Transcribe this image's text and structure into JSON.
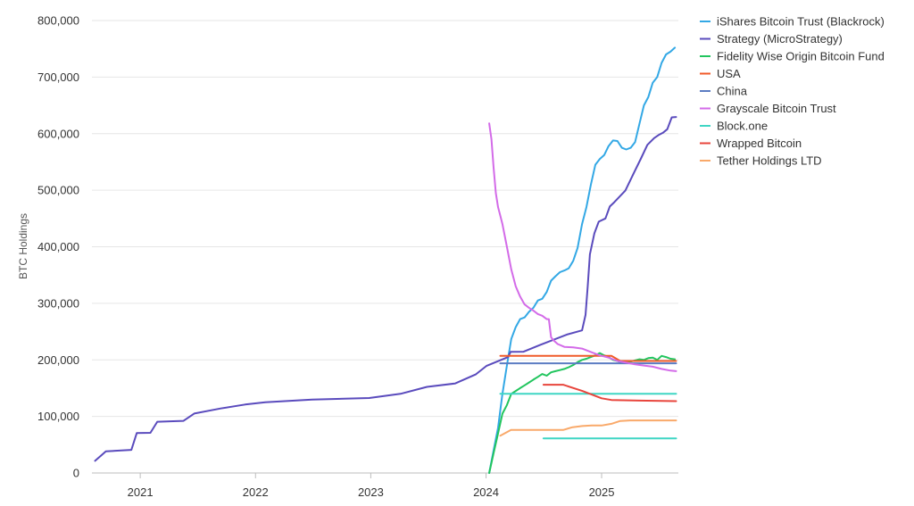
{
  "chart_data": {
    "type": "line",
    "title": "",
    "xlabel": "",
    "ylabel": "BTC Holdings",
    "xlim": [
      "2020-08-01",
      "2025-09-01"
    ],
    "ylim": [
      0,
      800000
    ],
    "y_ticks": [
      0,
      100000,
      200000,
      300000,
      400000,
      500000,
      600000,
      700000,
      800000
    ],
    "y_tick_labels": [
      "0",
      "100,000",
      "200,000",
      "300,000",
      "400,000",
      "500,000",
      "600,000",
      "700,000",
      "800,000"
    ],
    "x_ticks": [
      "2021-01-01",
      "2022-01-01",
      "2023-01-01",
      "2024-01-01",
      "2025-01-01"
    ],
    "x_tick_labels": [
      "2021",
      "2022",
      "2023",
      "2024",
      "2025"
    ],
    "grid": "horizontal",
    "legend_position": "right",
    "series": [
      {
        "name": "iShares Bitcoin Trust (Blackrock)",
        "color": "#33a8e5",
        "points": [
          [
            "2024-01-11",
            0
          ],
          [
            "2024-01-25",
            40000
          ],
          [
            "2024-02-08",
            80000
          ],
          [
            "2024-02-22",
            140000
          ],
          [
            "2024-03-07",
            190000
          ],
          [
            "2024-03-21",
            237000
          ],
          [
            "2024-04-04",
            258000
          ],
          [
            "2024-04-18",
            272000
          ],
          [
            "2024-05-02",
            275000
          ],
          [
            "2024-05-16",
            285000
          ],
          [
            "2024-05-30",
            292000
          ],
          [
            "2024-06-13",
            305000
          ],
          [
            "2024-06-27",
            308000
          ],
          [
            "2024-07-11",
            320000
          ],
          [
            "2024-07-25",
            340000
          ],
          [
            "2024-08-08",
            348000
          ],
          [
            "2024-08-22",
            355000
          ],
          [
            "2024-09-05",
            358000
          ],
          [
            "2024-09-19",
            362000
          ],
          [
            "2024-10-03",
            375000
          ],
          [
            "2024-10-17",
            398000
          ],
          [
            "2024-10-31",
            440000
          ],
          [
            "2024-11-14",
            470000
          ],
          [
            "2024-11-28",
            510000
          ],
          [
            "2024-12-12",
            545000
          ],
          [
            "2024-12-26",
            555000
          ],
          [
            "2025-01-09",
            562000
          ],
          [
            "2025-01-23",
            578000
          ],
          [
            "2025-02-06",
            588000
          ],
          [
            "2025-02-20",
            587000
          ],
          [
            "2025-03-06",
            575000
          ],
          [
            "2025-03-20",
            572000
          ],
          [
            "2025-04-03",
            575000
          ],
          [
            "2025-04-17",
            585000
          ],
          [
            "2025-05-01",
            618000
          ],
          [
            "2025-05-15",
            650000
          ],
          [
            "2025-05-29",
            665000
          ],
          [
            "2025-06-12",
            690000
          ],
          [
            "2025-06-26",
            700000
          ],
          [
            "2025-07-10",
            725000
          ],
          [
            "2025-07-24",
            740000
          ],
          [
            "2025-08-07",
            745000
          ],
          [
            "2025-08-21",
            752000
          ]
        ]
      },
      {
        "name": "Strategy (MicroStrategy)",
        "color": "#5a4bbd",
        "points": [
          [
            "2020-08-11",
            21454
          ],
          [
            "2020-09-14",
            38250
          ],
          [
            "2020-12-04",
            40824
          ],
          [
            "2020-12-21",
            70470
          ],
          [
            "2021-02-02",
            71079
          ],
          [
            "2021-02-24",
            90531
          ],
          [
            "2021-04-05",
            91326
          ],
          [
            "2021-05-18",
            92079
          ],
          [
            "2021-06-21",
            105085
          ],
          [
            "2021-09-13",
            114042
          ],
          [
            "2021-11-29",
            121044
          ],
          [
            "2022-02-01",
            125051
          ],
          [
            "2022-06-29",
            129699
          ],
          [
            "2022-12-27",
            132500
          ],
          [
            "2023-04-05",
            140000
          ],
          [
            "2023-06-28",
            152333
          ],
          [
            "2023-09-25",
            158245
          ],
          [
            "2023-11-30",
            174530
          ],
          [
            "2024-01-02",
            189150
          ],
          [
            "2024-03-11",
            205000
          ],
          [
            "2024-03-19",
            214246
          ],
          [
            "2024-04-29",
            214400
          ],
          [
            "2024-06-20",
            226331
          ],
          [
            "2024-09-13",
            244800
          ],
          [
            "2024-10-31",
            252220
          ],
          [
            "2024-11-11",
            279420
          ],
          [
            "2024-11-18",
            331200
          ],
          [
            "2024-11-25",
            386700
          ],
          [
            "2024-12-09",
            423650
          ],
          [
            "2024-12-23",
            444262
          ],
          [
            "2025-01-13",
            450000
          ],
          [
            "2025-01-27",
            471107
          ],
          [
            "2025-02-10",
            478740
          ],
          [
            "2025-03-17",
            499226
          ],
          [
            "2025-04-14",
            531644
          ],
          [
            "2025-05-05",
            555450
          ],
          [
            "2025-05-26",
            580250
          ],
          [
            "2025-06-16",
            592100
          ],
          [
            "2025-06-30",
            597325
          ],
          [
            "2025-07-14",
            601550
          ],
          [
            "2025-07-28",
            607770
          ],
          [
            "2025-08-11",
            628791
          ],
          [
            "2025-08-25",
            629376
          ]
        ]
      },
      {
        "name": "Fidelity Wise Origin Bitcoin Fund",
        "color": "#22c55e",
        "points": [
          [
            "2024-01-11",
            0
          ],
          [
            "2024-01-25",
            35000
          ],
          [
            "2024-02-08",
            70000
          ],
          [
            "2024-02-22",
            105000
          ],
          [
            "2024-03-07",
            120000
          ],
          [
            "2024-03-21",
            140000
          ],
          [
            "2024-04-04",
            145000
          ],
          [
            "2024-04-18",
            150000
          ],
          [
            "2024-05-02",
            155000
          ],
          [
            "2024-05-16",
            160000
          ],
          [
            "2024-05-30",
            165000
          ],
          [
            "2024-06-13",
            170000
          ],
          [
            "2024-06-27",
            175000
          ],
          [
            "2024-07-11",
            172000
          ],
          [
            "2024-07-25",
            178000
          ],
          [
            "2024-08-08",
            180000
          ],
          [
            "2024-08-22",
            182000
          ],
          [
            "2024-09-05",
            184000
          ],
          [
            "2024-09-19",
            187000
          ],
          [
            "2024-10-03",
            191000
          ],
          [
            "2024-10-17",
            196000
          ],
          [
            "2024-10-31",
            200000
          ],
          [
            "2024-11-14",
            202000
          ],
          [
            "2024-11-28",
            205000
          ],
          [
            "2024-12-12",
            208000
          ],
          [
            "2024-12-26",
            212000
          ],
          [
            "2025-01-09",
            208000
          ],
          [
            "2025-01-23",
            205000
          ],
          [
            "2025-02-06",
            200000
          ],
          [
            "2025-02-20",
            198000
          ],
          [
            "2025-03-06",
            195000
          ],
          [
            "2025-03-20",
            196000
          ],
          [
            "2025-04-03",
            197000
          ],
          [
            "2025-04-17",
            199000
          ],
          [
            "2025-05-01",
            201000
          ],
          [
            "2025-05-15",
            200000
          ],
          [
            "2025-05-29",
            203000
          ],
          [
            "2025-06-12",
            204000
          ],
          [
            "2025-06-26",
            200000
          ],
          [
            "2025-07-10",
            207000
          ],
          [
            "2025-07-24",
            205000
          ],
          [
            "2025-08-07",
            202000
          ],
          [
            "2025-08-21",
            201000
          ]
        ]
      },
      {
        "name": "USA",
        "color": "#f05a28",
        "points": [
          [
            "2024-02-15",
            207000
          ],
          [
            "2025-02-01",
            207000
          ],
          [
            "2025-03-01",
            198000
          ],
          [
            "2025-08-25",
            198000
          ]
        ]
      },
      {
        "name": "China",
        "color": "#5b7cc2",
        "points": [
          [
            "2024-02-15",
            194000
          ],
          [
            "2025-08-25",
            194000
          ]
        ]
      },
      {
        "name": "Grayscale Bitcoin Trust",
        "color": "#d36be8",
        "points": [
          [
            "2024-01-11",
            618000
          ],
          [
            "2024-01-18",
            590000
          ],
          [
            "2024-01-25",
            540000
          ],
          [
            "2024-02-01",
            495000
          ],
          [
            "2024-02-08",
            470000
          ],
          [
            "2024-02-15",
            455000
          ],
          [
            "2024-02-22",
            440000
          ],
          [
            "2024-03-07",
            400000
          ],
          [
            "2024-03-21",
            360000
          ],
          [
            "2024-04-04",
            330000
          ],
          [
            "2024-04-18",
            312000
          ],
          [
            "2024-05-02",
            298000
          ],
          [
            "2024-05-16",
            292000
          ],
          [
            "2024-05-30",
            287000
          ],
          [
            "2024-06-13",
            281000
          ],
          [
            "2024-06-27",
            278000
          ],
          [
            "2024-07-11",
            272000
          ],
          [
            "2024-07-18",
            272000
          ],
          [
            "2024-07-25",
            240000
          ],
          [
            "2024-08-01",
            235000
          ],
          [
            "2024-08-15",
            228000
          ],
          [
            "2024-09-05",
            223000
          ],
          [
            "2024-10-03",
            222000
          ],
          [
            "2024-10-31",
            220000
          ],
          [
            "2024-11-28",
            214000
          ],
          [
            "2024-12-26",
            208000
          ],
          [
            "2025-01-23",
            204000
          ],
          [
            "2025-02-20",
            198000
          ],
          [
            "2025-03-20",
            195000
          ],
          [
            "2025-04-17",
            192000
          ],
          [
            "2025-05-15",
            190000
          ],
          [
            "2025-06-12",
            188000
          ],
          [
            "2025-07-10",
            184000
          ],
          [
            "2025-08-07",
            181000
          ],
          [
            "2025-08-25",
            180000
          ]
        ]
      },
      {
        "name": "Block.one",
        "color": "#3fd6c4",
        "points": [
          [
            "2024-02-15",
            140000
          ],
          [
            "2025-08-25",
            140000
          ]
        ]
      },
      {
        "name": "Wrapped Bitcoin",
        "color": "#e8453c",
        "points": [
          [
            "2024-07-01",
            156000
          ],
          [
            "2024-09-01",
            156000
          ],
          [
            "2024-11-01",
            145000
          ],
          [
            "2025-01-01",
            132000
          ],
          [
            "2025-02-01",
            129000
          ],
          [
            "2025-05-01",
            128000
          ],
          [
            "2025-08-25",
            127000
          ]
        ]
      },
      {
        "name": "Tether Holdings LTD",
        "color": "#f9a96a",
        "points": [
          [
            "2024-02-15",
            66000
          ],
          [
            "2024-03-20",
            76000
          ],
          [
            "2024-09-01",
            76000
          ],
          [
            "2024-10-01",
            81000
          ],
          [
            "2024-11-01",
            83000
          ],
          [
            "2024-12-01",
            84000
          ],
          [
            "2025-01-01",
            84000
          ],
          [
            "2025-02-01",
            87000
          ],
          [
            "2025-03-01",
            92000
          ],
          [
            "2025-04-01",
            93000
          ],
          [
            "2025-08-25",
            93000
          ]
        ]
      },
      {
        "name": "",
        "color": "#3fd6c4",
        "points": [
          [
            "2024-07-01",
            61000
          ],
          [
            "2025-08-25",
            61000
          ]
        ]
      }
    ],
    "legend": [
      {
        "label": "iShares Bitcoin Trust (Blackrock)",
        "color": "#33a8e5"
      },
      {
        "label": "Strategy (MicroStrategy)",
        "color": "#5a4bbd"
      },
      {
        "label": "Fidelity Wise Origin Bitcoin Fund",
        "color": "#22c55e"
      },
      {
        "label": "USA",
        "color": "#f05a28"
      },
      {
        "label": "China",
        "color": "#5b7cc2"
      },
      {
        "label": "Grayscale Bitcoin Trust",
        "color": "#d36be8"
      },
      {
        "label": "Block.one",
        "color": "#3fd6c4"
      },
      {
        "label": "Wrapped Bitcoin",
        "color": "#e8453c"
      },
      {
        "label": "Tether Holdings LTD",
        "color": "#f9a96a"
      }
    ]
  }
}
